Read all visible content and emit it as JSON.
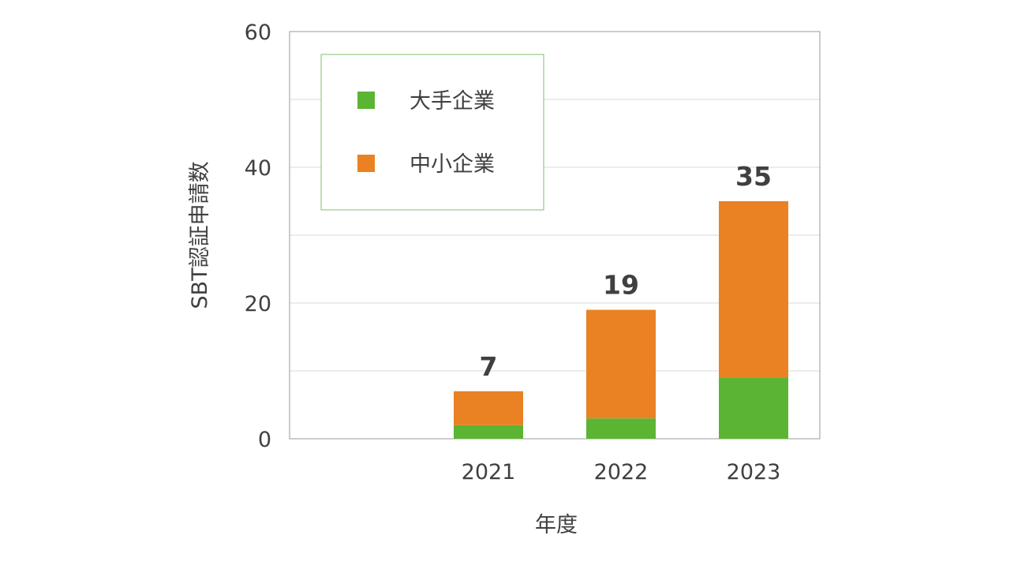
{
  "chart_data": {
    "type": "bar",
    "stacked": true,
    "title": "",
    "xlabel": "年度",
    "ylabel": "SBT認証申請数",
    "categories": [
      "",
      "2021",
      "2022",
      "2023"
    ],
    "series": [
      {
        "name": "大手企業",
        "color": "#5bb533",
        "values": [
          null,
          2,
          3,
          9
        ]
      },
      {
        "name": "中小企業",
        "color": "#ea8123",
        "values": [
          null,
          5,
          16,
          26
        ]
      }
    ],
    "totals": [
      null,
      7,
      19,
      35
    ],
    "total_labels": [
      "",
      "7",
      "19",
      "35"
    ],
    "ylim": [
      0,
      60
    ],
    "yticks": [
      0,
      20,
      40,
      60
    ],
    "ytick_labels": [
      "0",
      "20",
      "40",
      "60"
    ],
    "grid": true,
    "legend_position": "top-left"
  }
}
